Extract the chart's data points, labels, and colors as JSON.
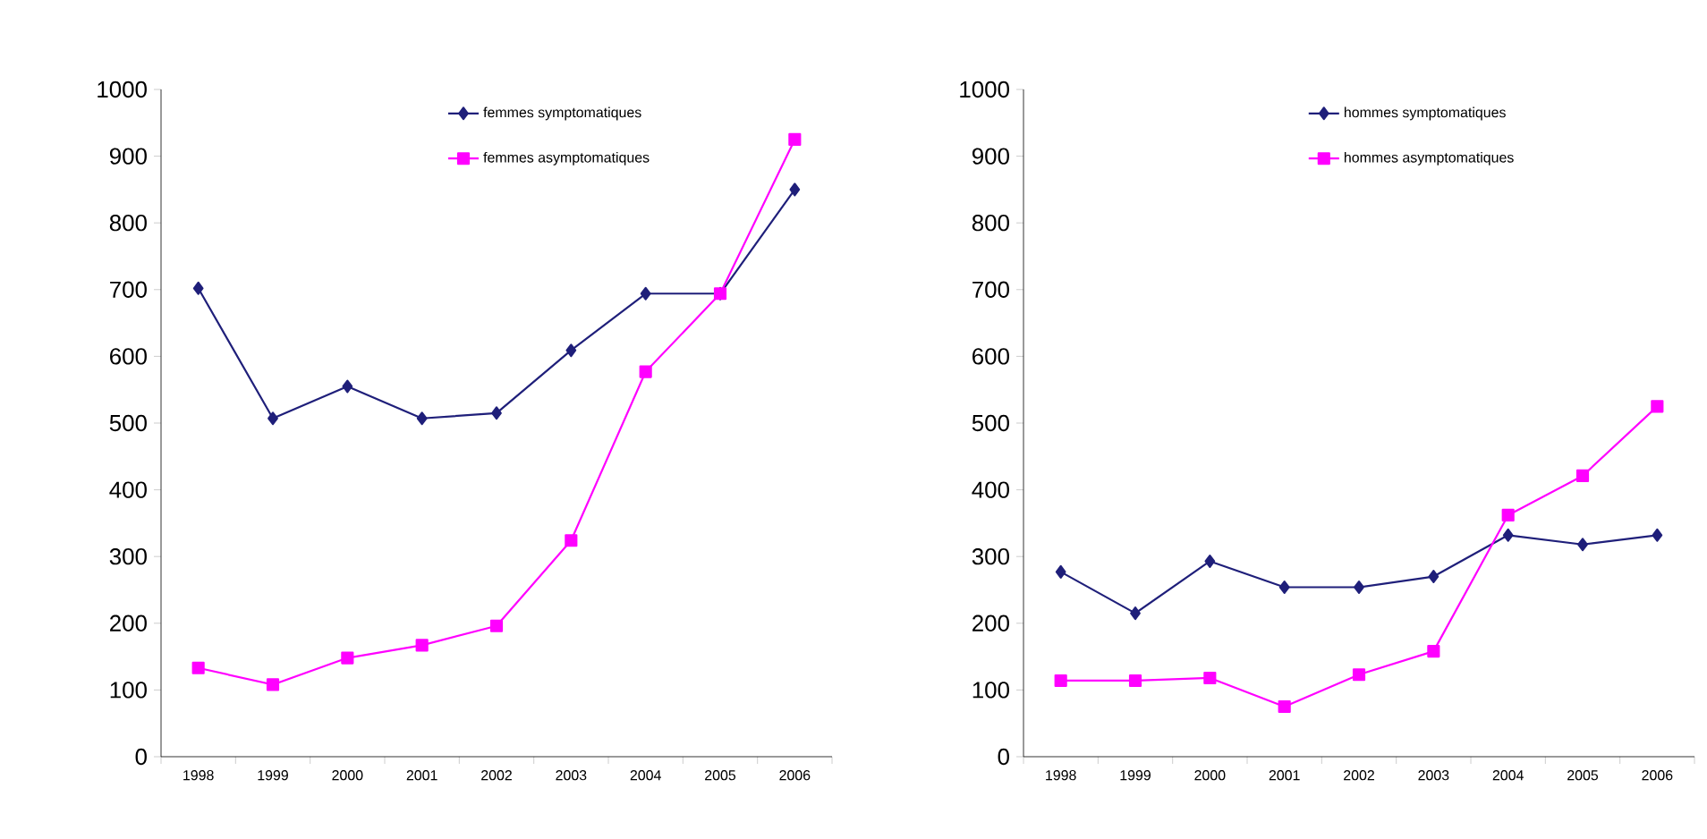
{
  "chart_data": [
    {
      "type": "line",
      "categories": [
        "1998",
        "1999",
        "2000",
        "2001",
        "2002",
        "2003",
        "2004",
        "2005",
        "2006"
      ],
      "ylim": [
        0,
        1000
      ],
      "yticks": [
        0,
        100,
        200,
        300,
        400,
        500,
        600,
        700,
        800,
        900,
        1000
      ],
      "legend": "top",
      "grid": false,
      "series": [
        {
          "name": "femmes symptomatiques",
          "color": "#1f1f7a",
          "marker": "diamond",
          "values": [
            702,
            507,
            555,
            507,
            515,
            609,
            694,
            694,
            850
          ]
        },
        {
          "name": "femmes asymptomatiques",
          "color": "#ff00ff",
          "marker": "square",
          "values": [
            133,
            108,
            148,
            167,
            196,
            324,
            577,
            694,
            925
          ]
        }
      ]
    },
    {
      "type": "line",
      "categories": [
        "1998",
        "1999",
        "2000",
        "2001",
        "2002",
        "2003",
        "2004",
        "2005",
        "2006"
      ],
      "ylim": [
        0,
        1000
      ],
      "yticks": [
        0,
        100,
        200,
        300,
        400,
        500,
        600,
        700,
        800,
        900,
        1000
      ],
      "legend": "top",
      "grid": false,
      "series": [
        {
          "name": "hommes symptomatiques",
          "color": "#1f1f7a",
          "marker": "diamond",
          "values": [
            277,
            215,
            293,
            254,
            254,
            270,
            332,
            318,
            332
          ]
        },
        {
          "name": "hommes asymptomatiques",
          "color": "#ff00ff",
          "marker": "square",
          "values": [
            114,
            114,
            118,
            75,
            123,
            158,
            362,
            421,
            525
          ]
        }
      ]
    }
  ]
}
